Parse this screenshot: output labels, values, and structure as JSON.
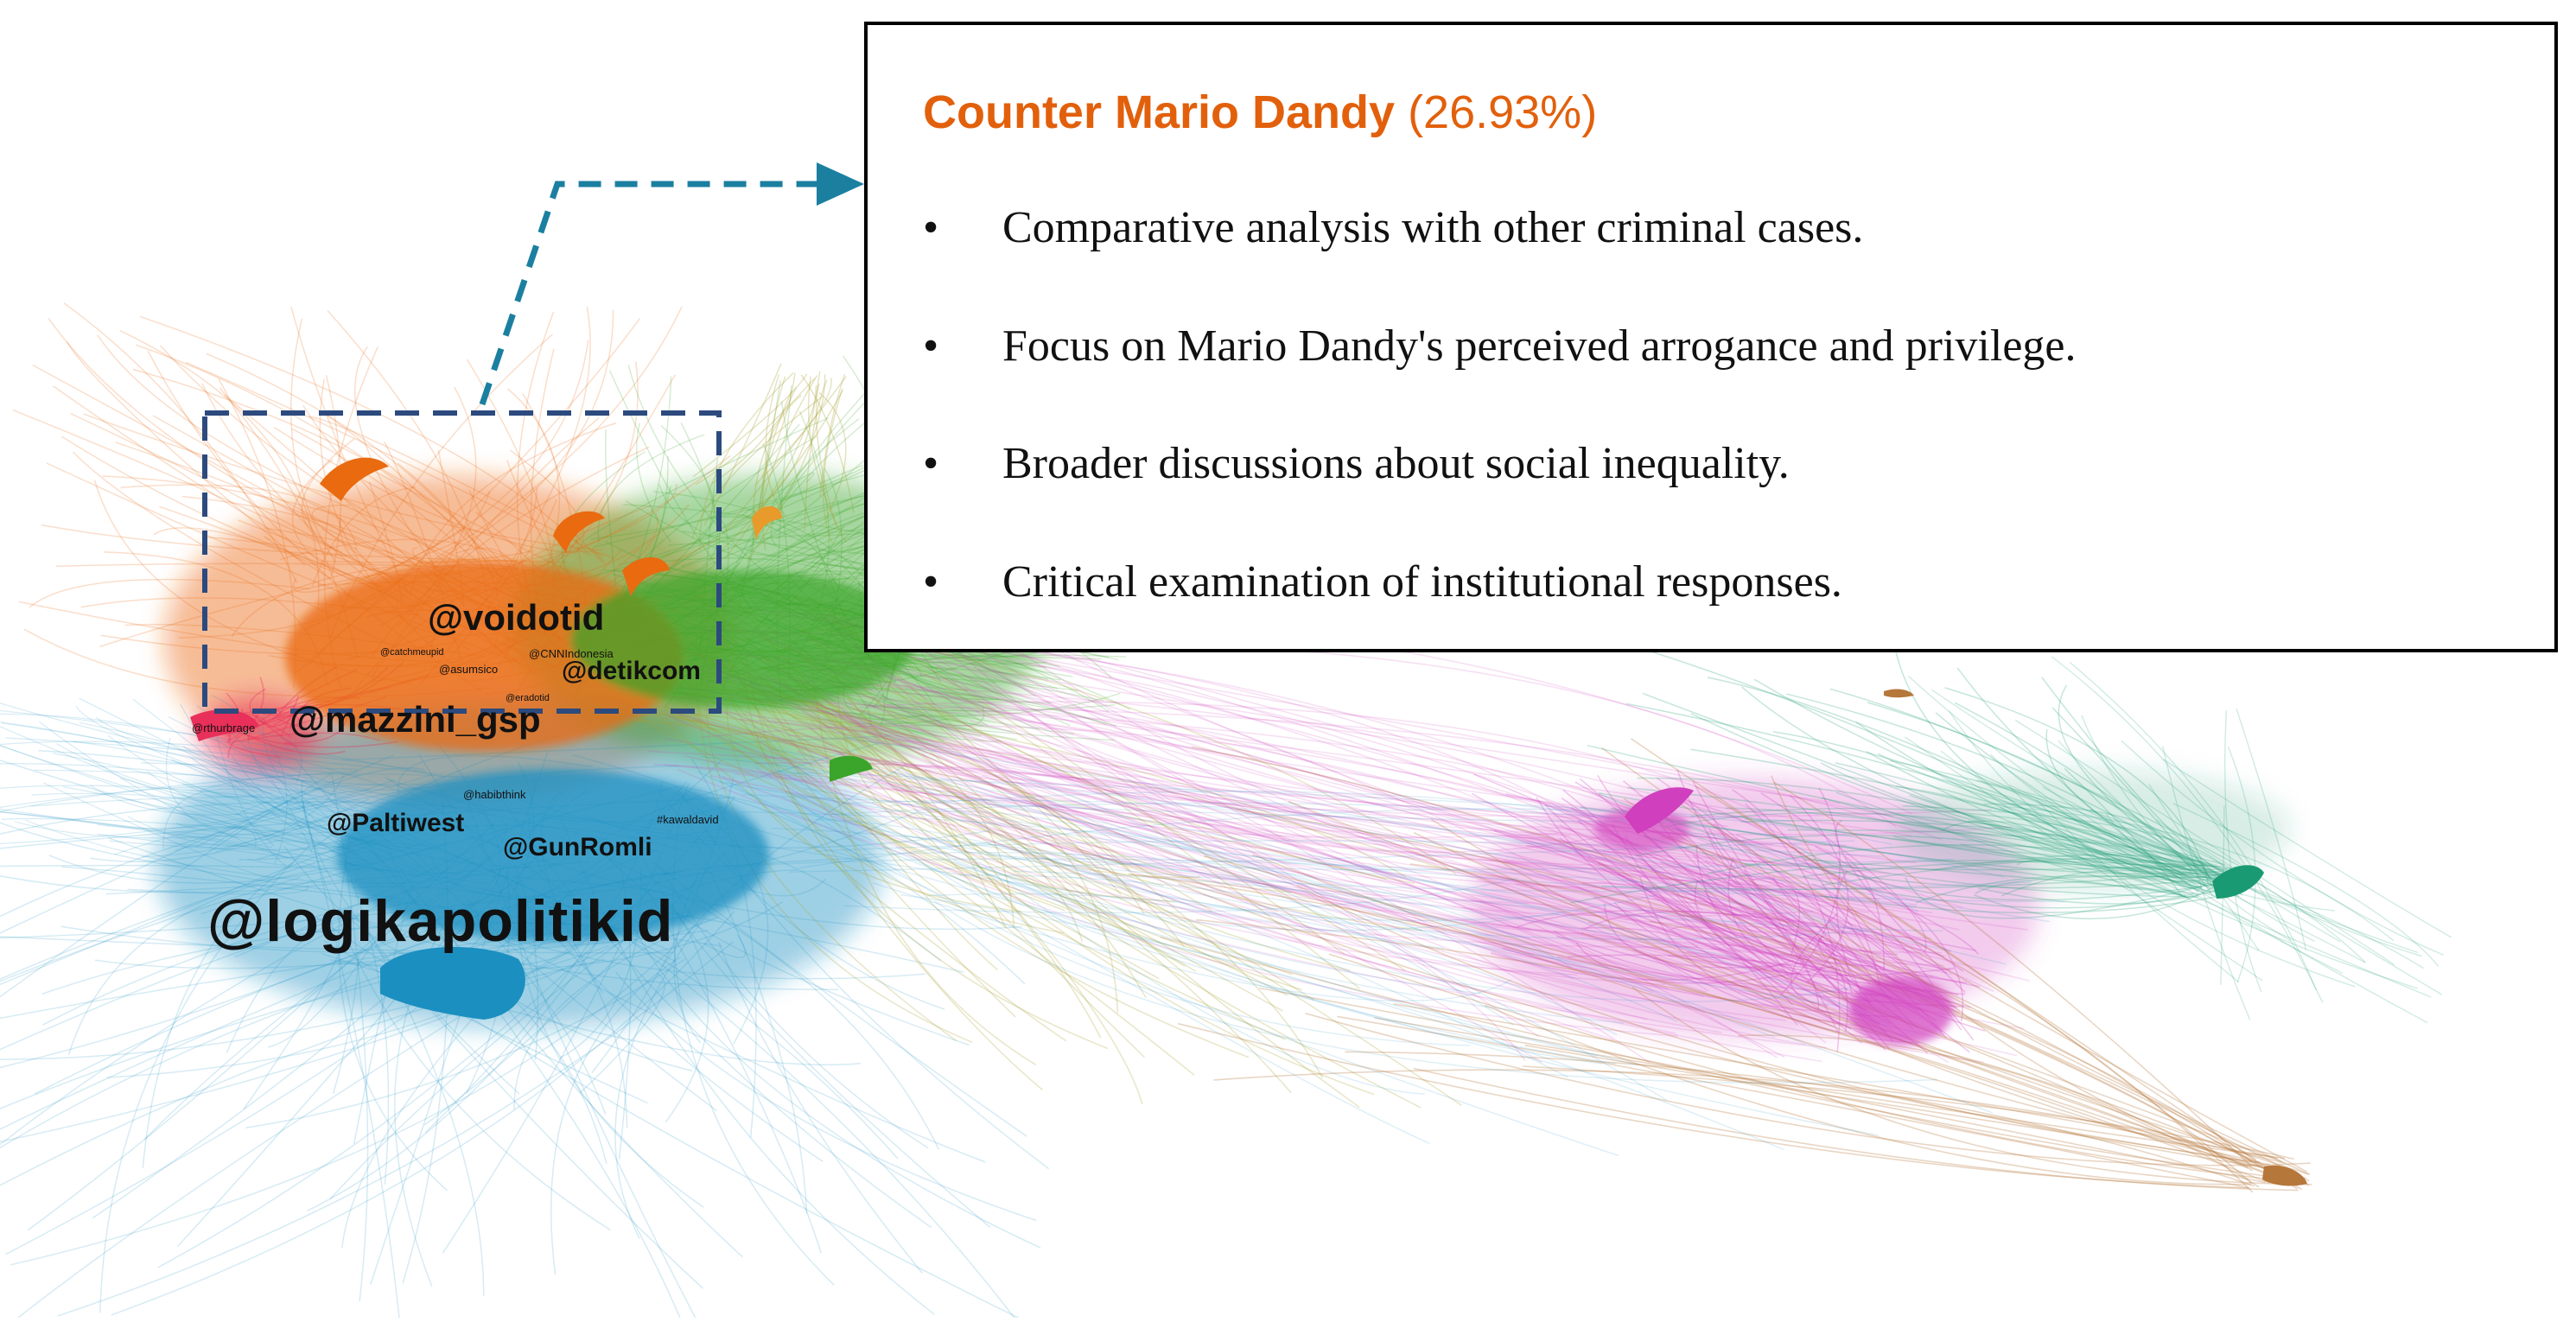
{
  "callout": {
    "title": "Counter Mario Dandy",
    "percentage": "(26.93%)",
    "bullets": [
      "Comparative analysis with other criminal cases.",
      "Focus on Mario Dandy's perceived arrogance and privilege.",
      "Broader discussions about social inequality.",
      "Critical examination of institutional responses."
    ],
    "bullet_symbol": "•"
  },
  "network": {
    "labels": {
      "logikapolitikid": "@logikapolitikid",
      "mazzini_gsp": "@mazzini_gsp",
      "voidotid": "@voidotid",
      "detikcom": "@detikcom",
      "paltiwest": "@Paltiwest",
      "gunromli": "@GunRomli",
      "cnnindonesia": "@CNNIndonesia",
      "asumsico": "@asumsico",
      "catchmeupid": "@catchmeupid",
      "rthurbrage": "@rthurbrage",
      "habibthink": "@habibthink",
      "kawaldavid": "#kawaldavid",
      "eradotid": "@eradotid"
    },
    "colors": {
      "orange": "#ea6a10",
      "blue": "#1b8fc0",
      "green": "#3aa52a",
      "magenta": "#d03fbd",
      "red": "#e8305a",
      "olive": "#a6a02e",
      "teal": "#1a9a72",
      "brown": "#b5773a",
      "arrow": "#1b7fa0",
      "box": "#2c4a7e"
    }
  }
}
